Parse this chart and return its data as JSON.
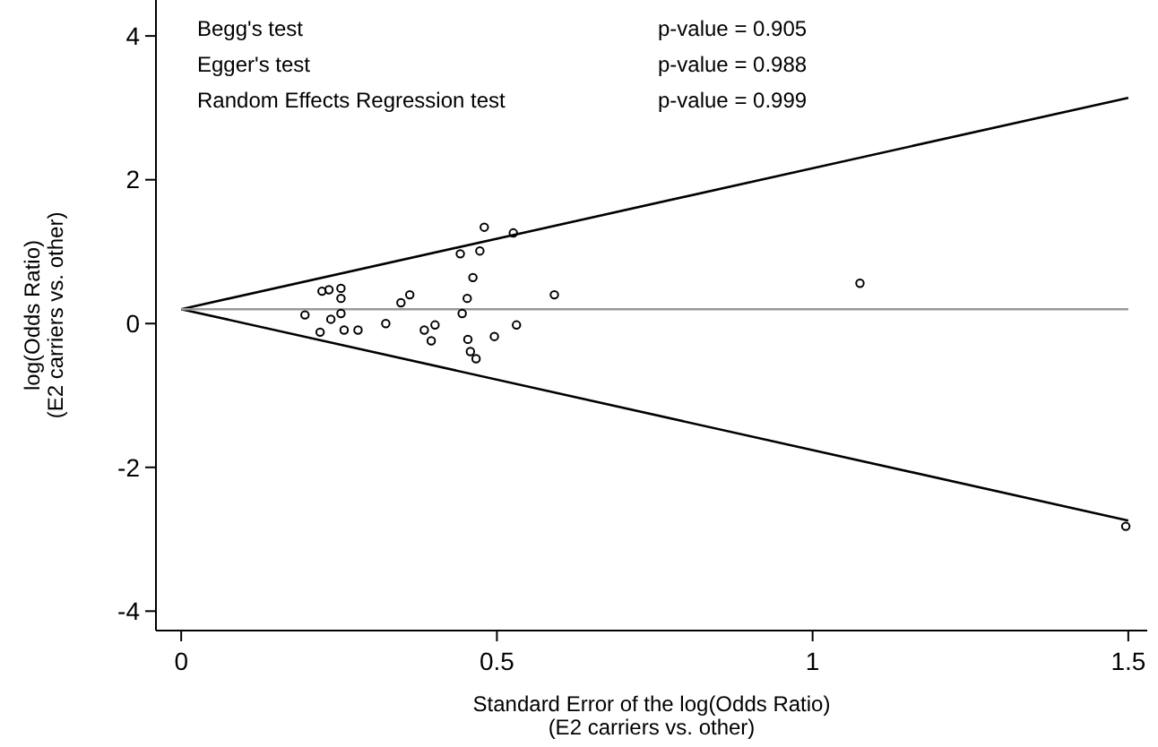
{
  "chart_data": {
    "type": "scatter",
    "xlabel": "Standard Error of the log(Odds Ratio)\n(E2 carriers vs. other)",
    "ylabel": "log(Odds Ratio)\n(E2 carriers vs. other)",
    "xlim": [
      -0.04,
      1.53
    ],
    "ylim": [
      -4.27,
      4.5
    ],
    "xticks": [
      0,
      0.5,
      1,
      1.5
    ],
    "yticks": [
      -4,
      -2,
      0,
      2,
      4
    ],
    "grid": false,
    "annotations": [
      "Begg's test",
      "p-value = 0.905",
      "Egger's test",
      "p-value = 0.988",
      "Random Effects Regression test",
      "p-value = 0.999"
    ],
    "series": [
      {
        "type": "line",
        "marker": "none",
        "color": "#000000",
        "x": [
          0,
          1.5
        ],
        "values": [
          0.2,
          3.14
        ]
      },
      {
        "type": "line",
        "marker": "none",
        "color": "#000000",
        "x": [
          0,
          1.5
        ],
        "values": [
          0.2,
          -2.74
        ]
      },
      {
        "type": "line",
        "marker": "none",
        "color": "#999999",
        "x": [
          0,
          1.5
        ],
        "values": [
          0.2,
          0.2
        ]
      },
      {
        "marker": "circle",
        "color": "#000000",
        "x": [
          0.48,
          0.526,
          0.442,
          0.473,
          0.462,
          0.234,
          0.223,
          0.253,
          0.253,
          0.362,
          0.348,
          0.453,
          0.591,
          0.253,
          0.237,
          0.445,
          0.324,
          0.402,
          0.385,
          0.258,
          0.28,
          0.531,
          0.396,
          0.496,
          0.454,
          0.458,
          0.467,
          0.22,
          0.196,
          1.075,
          1.496
        ],
        "values": [
          1.34,
          1.26,
          0.97,
          1.01,
          0.64,
          0.47,
          0.45,
          0.49,
          0.35,
          0.4,
          0.29,
          0.35,
          0.4,
          0.14,
          0.06,
          0.14,
          0.0,
          -0.02,
          -0.09,
          -0.09,
          -0.09,
          -0.02,
          -0.24,
          -0.18,
          -0.22,
          -0.39,
          -0.49,
          -0.12,
          0.12,
          0.56,
          -2.82
        ]
      }
    ]
  }
}
